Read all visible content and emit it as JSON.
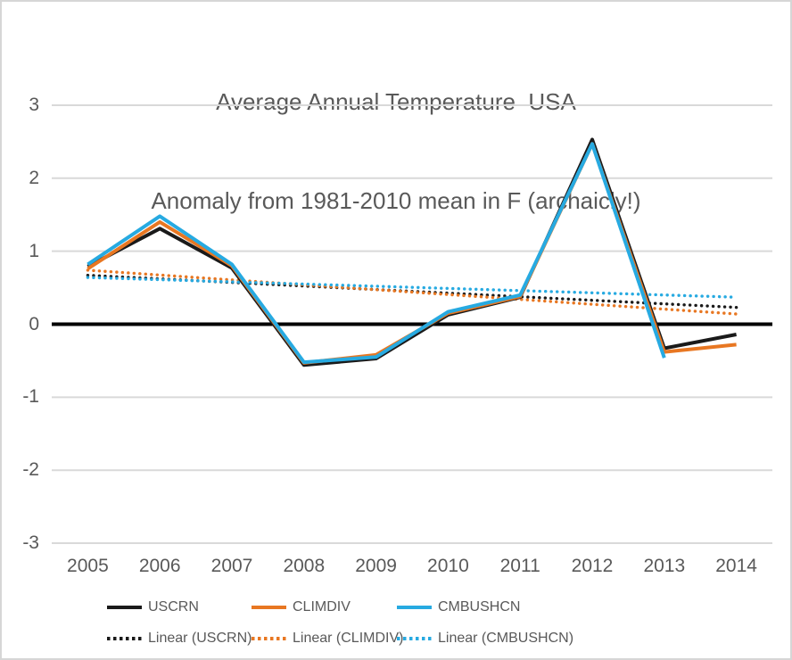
{
  "title": {
    "line1": "Average Annual Temperature  USA",
    "line2": "Anomaly from 1981-2010 mean in F (archaicly!)"
  },
  "chart_data": {
    "type": "line",
    "title": "Average Annual Temperature USA — Anomaly from 1981-2010 mean in F (archaicly!)",
    "categories": [
      "2005",
      "2006",
      "2007",
      "2008",
      "2009",
      "2010",
      "2011",
      "2012",
      "2013",
      "2014"
    ],
    "series": [
      {
        "name": "USCRN",
        "color": "#1a1a1a",
        "style": "solid",
        "values": [
          0.79,
          1.31,
          0.77,
          -0.56,
          -0.47,
          0.13,
          0.37,
          2.53,
          -0.33,
          -0.14
        ]
      },
      {
        "name": "CLIMDIV",
        "color": "#e87722",
        "style": "solid",
        "values": [
          0.76,
          1.4,
          0.8,
          -0.53,
          -0.42,
          0.15,
          0.38,
          2.47,
          -0.38,
          -0.28
        ]
      },
      {
        "name": "CMBUSHCN",
        "color": "#27aae1",
        "style": "solid",
        "values": [
          0.82,
          1.48,
          0.82,
          -0.52,
          -0.45,
          0.17,
          0.4,
          2.47,
          -0.46,
          null
        ]
      }
    ],
    "trendlines": [
      {
        "name": "Linear (USCRN)",
        "color": "#1a1a1a",
        "style": "dotted",
        "start": 0.67,
        "end": 0.23
      },
      {
        "name": "Linear (CLIMDIV)",
        "color": "#e87722",
        "style": "dotted",
        "start": 0.74,
        "end": 0.14
      },
      {
        "name": "Linear (CMBUSHCN)",
        "color": "#27aae1",
        "style": "dotted",
        "start": 0.64,
        "end": 0.37
      }
    ],
    "xlabel": "",
    "ylabel": "",
    "ylim": [
      -3,
      3
    ],
    "y_ticks": [
      3,
      2,
      1,
      0,
      -1,
      -2,
      -3
    ],
    "grid": true,
    "legend_position": "bottom",
    "gridline_color": "#d9d9d9",
    "zero_line_color": "#000000",
    "text_color": "#595959"
  }
}
